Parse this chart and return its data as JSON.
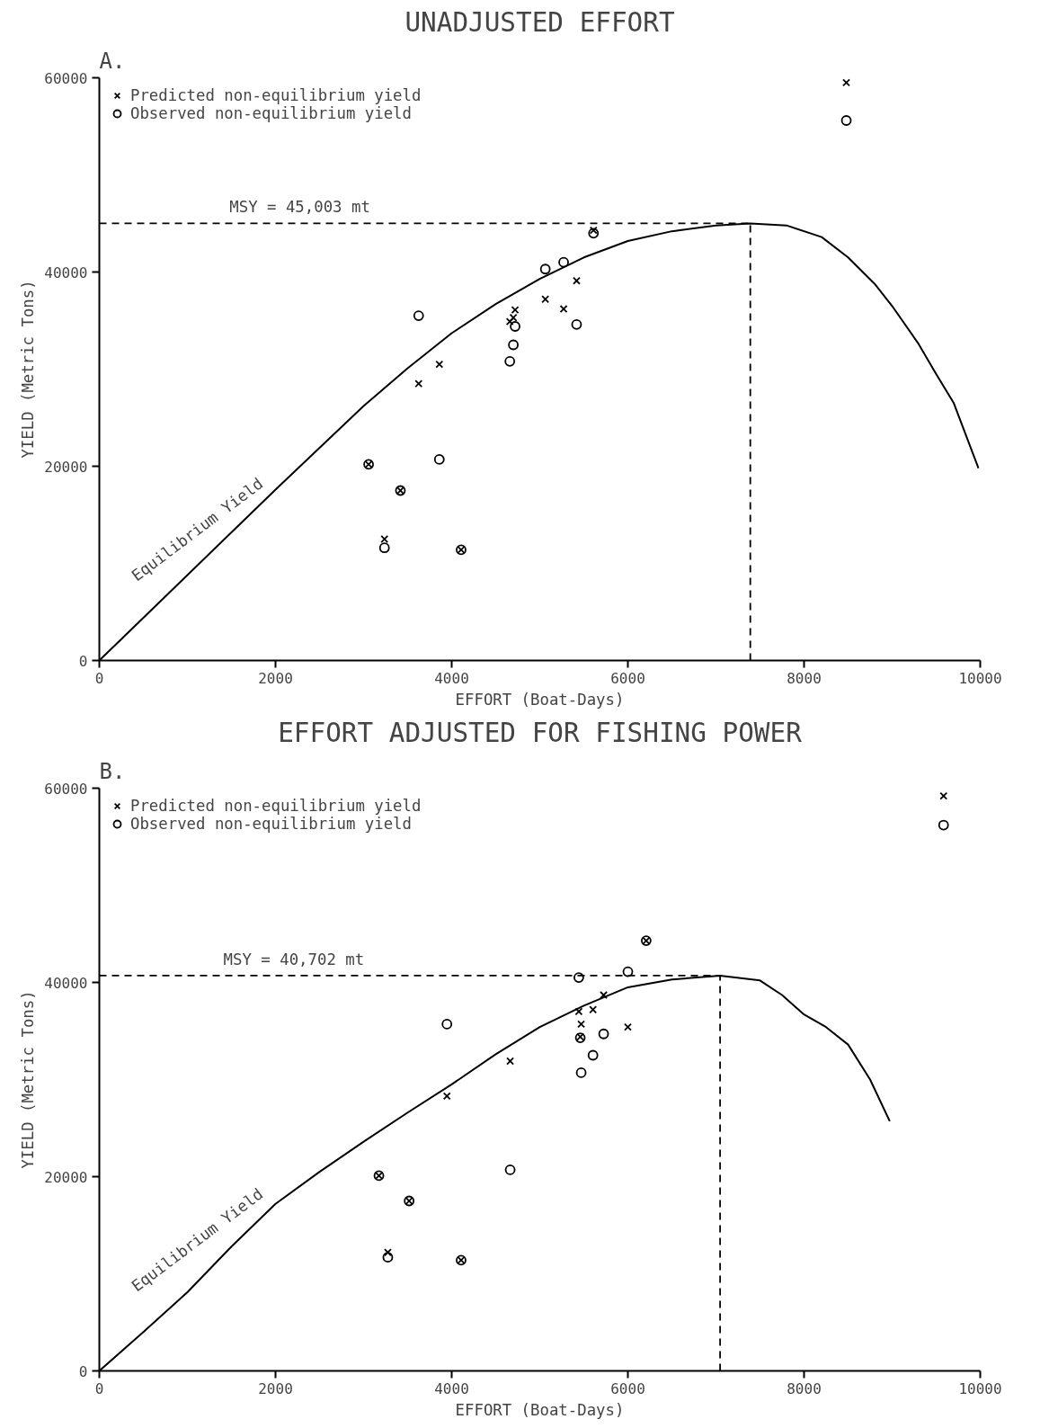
{
  "chart_data": [
    {
      "type": "scatter",
      "title": "UNADJUSTED EFFORT",
      "xlabel": "EFFORT (Boat-Days)",
      "ylabel": "YIELD (Metric Tons)",
      "annotations": [
        "A.",
        "Equilibrium Yield"
      ],
      "xlim": [
        0,
        10000
      ],
      "ylim": [
        0,
        60000
      ],
      "xticks": [
        0,
        2000,
        4000,
        6000,
        8000,
        10000
      ],
      "yticks": [
        0,
        20000,
        40000,
        60000
      ],
      "grid": false,
      "legend": "top left",
      "series": [
        {
          "name": "Predicted non-equilibrium yield",
          "marker": "cross",
          "color": "#000000",
          "x": [
            8480,
            5610,
            3625,
            3860,
            3057,
            3418,
            3237,
            4107,
            4720,
            4700,
            4660,
            5063,
            5271,
            5418
          ],
          "values": [
            59500,
            44300,
            28500,
            30500,
            20200,
            17500,
            12500,
            11400,
            36100,
            35300,
            34900,
            37200,
            36200,
            39100
          ]
        },
        {
          "name": "Observed non-equilibrium yield",
          "marker": "circle",
          "color": "#000000",
          "x": [
            8480,
            5610,
            3625,
            3860,
            3057,
            3418,
            3237,
            4107,
            4720,
            4700,
            4660,
            5063,
            5271,
            5418
          ],
          "values": [
            55600,
            44000,
            35500,
            20700,
            20200,
            17500,
            11600,
            11400,
            34400,
            32500,
            30800,
            40300,
            41000,
            34600
          ]
        },
        {
          "type": "line",
          "color": "#000000",
          "x": [
            0,
            500,
            1000,
            1500,
            2000,
            2500,
            3000,
            3500,
            4000,
            4500,
            5000,
            5500,
            6000,
            6500,
            7000,
            7390,
            7800,
            8200,
            8500,
            8800,
            9000,
            9300,
            9500,
            9700,
            9980
          ],
          "values": [
            0,
            4400,
            8800,
            13200,
            17600,
            21900,
            26200,
            30100,
            33700,
            36700,
            39300,
            41500,
            43200,
            44200,
            44800,
            45000,
            44800,
            43600,
            41500,
            38800,
            36500,
            32600,
            29500,
            26500,
            19800
          ]
        }
      ],
      "ref_lines": [
        {
          "axis": "y",
          "value": 45003,
          "label": "MSY = 45,003 mt",
          "line_style": "dashed"
        },
        {
          "axis": "x",
          "value": 7390,
          "label": null,
          "line_style": "dashed"
        }
      ]
    },
    {
      "type": "scatter",
      "title": "EFFORT ADJUSTED FOR FISHING POWER",
      "xlabel": "EFFORT (Boat-Days)",
      "ylabel": "YIELD (Metric Tons)",
      "annotations": [
        "B.",
        "Equilibrium Yield"
      ],
      "xlim": [
        0,
        10000
      ],
      "ylim": [
        0,
        60000
      ],
      "xticks": [
        0,
        2000,
        4000,
        6000,
        8000,
        10000
      ],
      "yticks": [
        0,
        20000,
        40000,
        60000
      ],
      "grid": false,
      "legend": "top left",
      "series": [
        {
          "name": "Predicted non-equilibrium yield",
          "marker": "cross",
          "color": "#000000",
          "x": [
            9584,
            6208,
            3946,
            4664,
            3174,
            3517,
            3275,
            4107,
            5443,
            5470,
            5460,
            5604,
            5725,
            6000
          ],
          "values": [
            59200,
            44300,
            28300,
            31900,
            20100,
            17500,
            12200,
            11400,
            37000,
            35700,
            34400,
            37200,
            38700,
            35400
          ]
        },
        {
          "name": "Observed non-equilibrium yield",
          "marker": "circle",
          "color": "#000000",
          "x": [
            9584,
            6208,
            3946,
            4664,
            3174,
            3517,
            3275,
            4107,
            5443,
            5470,
            5460,
            5604,
            5725,
            6000
          ],
          "values": [
            56200,
            44300,
            35700,
            20700,
            20100,
            17500,
            11700,
            11400,
            40500,
            30700,
            34300,
            32500,
            34700,
            41100
          ]
        },
        {
          "type": "line",
          "color": "#000000",
          "x": [
            0,
            500,
            1000,
            1500,
            2000,
            2500,
            3000,
            3500,
            4000,
            4500,
            5000,
            5500,
            6000,
            6500,
            7047,
            7500,
            7750,
            8000,
            8250,
            8500,
            8750,
            8973
          ],
          "values": [
            0,
            4000,
            8100,
            12800,
            17200,
            20500,
            23600,
            26600,
            29500,
            32600,
            35400,
            37600,
            39500,
            40300,
            40700,
            40200,
            38700,
            36700,
            35400,
            33600,
            30000,
            25700
          ]
        }
      ],
      "ref_lines": [
        {
          "axis": "y",
          "value": 40702,
          "label": "MSY = 40,702 mt",
          "line_style": "dashed"
        },
        {
          "axis": "x",
          "value": 7047,
          "label": null,
          "line_style": "dashed"
        }
      ]
    }
  ]
}
